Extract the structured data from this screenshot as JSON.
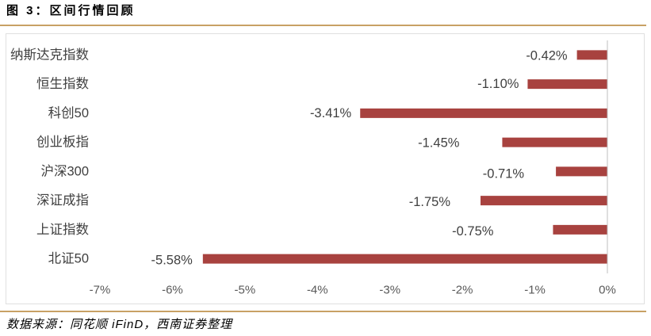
{
  "colors": {
    "bar": "#A8423F",
    "rule": "#C8A165",
    "axis": "#BFBFBF",
    "frame": "#E0E0E0"
  },
  "source": "数据来源：同花顺 iFinD，西南证券整理",
  "chart_data": {
    "type": "bar",
    "orientation": "horizontal",
    "title": "图 3：区间行情回顾",
    "categories": [
      "纳斯达克指数",
      "恒生指数",
      "科创50",
      "创业板指",
      "沪深300",
      "深证成指",
      "上证指数",
      "北证50"
    ],
    "values": [
      -0.42,
      -1.1,
      -3.41,
      -1.45,
      -0.71,
      -1.75,
      -0.75,
      -5.58
    ],
    "data_labels": [
      "-0.42%",
      "-1.10%",
      "-3.41%",
      "-1.45%",
      "-0.71%",
      "-1.75%",
      "-0.75%",
      "-5.58%"
    ],
    "xlim": [
      -7,
      0
    ],
    "x_ticks": [
      -7,
      -6,
      -5,
      -4,
      -3,
      -2,
      -1,
      0
    ],
    "x_tick_labels": [
      "-7%",
      "-6%",
      "-5%",
      "-4%",
      "-3%",
      "-2%",
      "-1%",
      "0%"
    ],
    "grid": false,
    "legend": "none"
  }
}
